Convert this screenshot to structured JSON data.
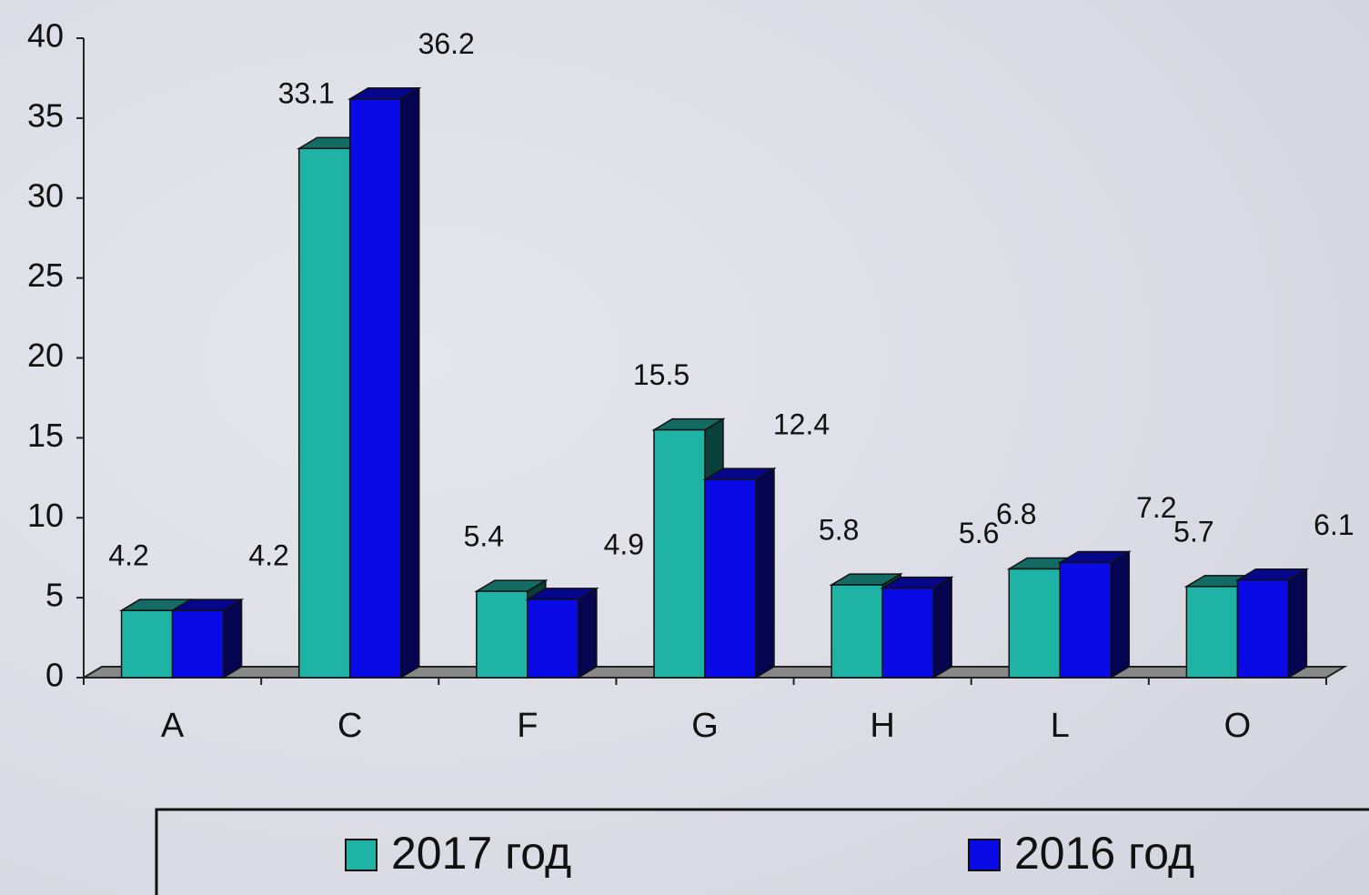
{
  "chart_data": {
    "type": "bar3d",
    "categories": [
      "A",
      "C",
      "F",
      "G",
      "H",
      "L",
      "O"
    ],
    "series": [
      {
        "name": "2017 год",
        "color": "#1fb3a6",
        "values": [
          4.2,
          33.1,
          5.4,
          15.5,
          5.8,
          6.8,
          5.7
        ]
      },
      {
        "name": "2016 год",
        "color": "#0a0ae6",
        "values": [
          4.2,
          36.2,
          4.9,
          12.4,
          5.6,
          7.2,
          6.1
        ]
      }
    ],
    "ylim": [
      0,
      40
    ],
    "yticks": [
      0,
      5,
      10,
      15,
      20,
      25,
      30,
      35,
      40
    ],
    "legend": "bottom"
  }
}
